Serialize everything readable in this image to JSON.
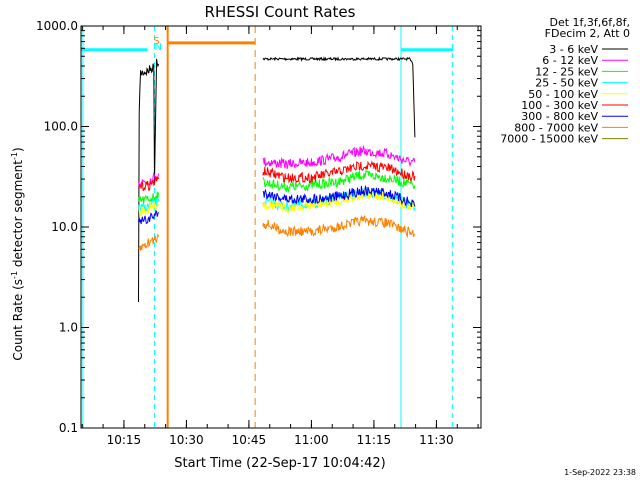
{
  "chart_data": {
    "type": "line",
    "title": "RHESSI Count Rates",
    "xlabel": "Start Time (22-Sep-17 10:04:42)",
    "ylabel_parts": [
      "Count Rate (s",
      "-1",
      " detector segment",
      "-1",
      ")"
    ],
    "yscale": "log",
    "ylim": [
      0.1,
      1000.0
    ],
    "y_ticks": [
      {
        "value": 0.1,
        "label": "0.1"
      },
      {
        "value": 1.0,
        "label": "1.0"
      },
      {
        "value": 10.0,
        "label": "10.0"
      },
      {
        "value": 100.0,
        "label": "100.0"
      },
      {
        "value": 1000.0,
        "label": "1000.0"
      }
    ],
    "xlim": [
      "10:04:42",
      "11:40:42"
    ],
    "x_ticks": [
      {
        "value": "10:15",
        "label": "10:15"
      },
      {
        "value": "10:30",
        "label": "10:30"
      },
      {
        "value": "10:45",
        "label": "10:45"
      },
      {
        "value": "11:00",
        "label": "11:00"
      },
      {
        "value": "11:15",
        "label": "11:15"
      },
      {
        "value": "11:30",
        "label": "11:30"
      }
    ],
    "legend_header": [
      "Det 1f,3f,6f,8f,",
      "FDecim 2, Att 0"
    ],
    "legend_position": "outside-right",
    "series": [
      {
        "name": "3 - 6 keV",
        "color": "#000000",
        "segments": [
          [
            [
              "10:18:30",
              1.6
            ],
            [
              "10:18:40",
              150
            ],
            [
              "10:19:00",
              340
            ],
            [
              "10:21:00",
              360
            ],
            [
              "10:21:30",
              380
            ],
            [
              "10:22:10",
              390
            ],
            [
              "10:22:20",
              30
            ],
            [
              "10:22:50",
              480
            ],
            [
              "10:23:20",
              420
            ]
          ],
          [
            [
              "10:48:20",
              470
            ],
            [
              "11:00:00",
              470
            ],
            [
              "11:15:00",
              470
            ],
            [
              "11:23:30",
              470
            ],
            [
              "11:24:20",
              420
            ],
            [
              "11:24:50",
              78
            ]
          ]
        ]
      },
      {
        "name": "6 - 12 keV",
        "color": "#ff00ff",
        "segments": [
          [
            [
              "10:18:30",
              28
            ],
            [
              "10:21:00",
              29
            ],
            [
              "10:22:10",
              31
            ],
            [
              "10:23:20",
              34
            ]
          ],
          [
            [
              "10:48:20",
              45
            ],
            [
              "10:54:00",
              42
            ],
            [
              "11:00:00",
              44
            ],
            [
              "11:06:00",
              49
            ],
            [
              "11:12:00",
              57
            ],
            [
              "11:18:00",
              54
            ],
            [
              "11:23:00",
              45
            ],
            [
              "11:24:50",
              44
            ]
          ]
        ]
      },
      {
        "name": "12 - 25 keV",
        "color": "#00ff00",
        "segments": [
          [
            [
              "10:18:30",
              18
            ],
            [
              "10:21:00",
              19
            ],
            [
              "10:22:10",
              20
            ],
            [
              "10:23:20",
              22
            ]
          ],
          [
            [
              "10:48:20",
              28
            ],
            [
              "10:54:00",
              25
            ],
            [
              "11:00:00",
              26
            ],
            [
              "11:06:00",
              28
            ],
            [
              "11:12:00",
              33
            ],
            [
              "11:18:00",
              31
            ],
            [
              "11:23:00",
              27
            ],
            [
              "11:24:50",
              26
            ]
          ]
        ]
      },
      {
        "name": "25 - 50 keV",
        "color": "#00ffff",
        "segments": [
          [
            [
              "10:18:30",
              15
            ],
            [
              "10:21:00",
              16
            ],
            [
              "10:22:10",
              17
            ],
            [
              "10:23:20",
              18
            ]
          ],
          [
            [
              "10:48:20",
              18
            ],
            [
              "10:54:00",
              16
            ],
            [
              "11:00:00",
              17
            ],
            [
              "11:06:00",
              19
            ],
            [
              "11:12:00",
              22
            ],
            [
              "11:18:00",
              21
            ],
            [
              "11:23:00",
              17
            ],
            [
              "11:24:50",
              16
            ]
          ]
        ]
      },
      {
        "name": "50 - 100 keV",
        "color": "#ffff00",
        "segments": [
          [
            [
              "10:18:30",
              14
            ],
            [
              "10:21:00",
              15
            ],
            [
              "10:22:10",
              16
            ],
            [
              "10:23:20",
              17
            ]
          ],
          [
            [
              "10:48:20",
              17
            ],
            [
              "10:54:00",
              15.5
            ],
            [
              "11:00:00",
              16.5
            ],
            [
              "11:06:00",
              18
            ],
            [
              "11:12:00",
              21
            ],
            [
              "11:18:00",
              20
            ],
            [
              "11:23:00",
              16.5
            ],
            [
              "11:24:50",
              15.5
            ]
          ]
        ]
      },
      {
        "name": "100 - 300 keV",
        "color": "#ff0000",
        "segments": [
          [
            [
              "10:18:30",
              25
            ],
            [
              "10:21:00",
              26
            ],
            [
              "10:22:10",
              28
            ],
            [
              "10:23:20",
              30
            ]
          ],
          [
            [
              "10:48:20",
              36
            ],
            [
              "10:54:00",
              31
            ],
            [
              "11:00:00",
              31
            ],
            [
              "11:06:00",
              35
            ],
            [
              "11:12:00",
              41
            ],
            [
              "11:18:00",
              39
            ],
            [
              "11:23:00",
              33
            ],
            [
              "11:24:50",
              32
            ]
          ]
        ]
      },
      {
        "name": "300 - 800 keV",
        "color": "#0000ff",
        "segments": [
          [
            [
              "10:18:30",
              11
            ],
            [
              "10:21:00",
              12
            ],
            [
              "10:22:10",
              13
            ],
            [
              "10:23:20",
              14
            ]
          ],
          [
            [
              "10:48:20",
              22
            ],
            [
              "10:54:00",
              19
            ],
            [
              "11:00:00",
              19
            ],
            [
              "11:06:00",
              20
            ],
            [
              "11:12:00",
              23
            ],
            [
              "11:18:00",
              22
            ],
            [
              "11:23:00",
              18
            ],
            [
              "11:24:50",
              16
            ]
          ]
        ]
      },
      {
        "name": "800 - 7000 keV",
        "color": "#ff8000",
        "segments": [
          [
            [
              "10:18:30",
              6
            ],
            [
              "10:21:00",
              7
            ],
            [
              "10:22:10",
              7.5
            ],
            [
              "10:23:20",
              8
            ]
          ],
          [
            [
              "10:48:20",
              11
            ],
            [
              "10:54:00",
              9
            ],
            [
              "11:00:00",
              9
            ],
            [
              "11:06:00",
              10
            ],
            [
              "11:12:00",
              11.5
            ],
            [
              "11:18:00",
              11
            ],
            [
              "11:23:00",
              9
            ],
            [
              "11:24:50",
              8.5
            ]
          ]
        ]
      },
      {
        "name": "7000 - 15000 keV",
        "color": "#808000",
        "segments": []
      }
    ],
    "annotations": [
      {
        "label": "S",
        "time": "10:22:50",
        "color": "#ff8000"
      },
      {
        "label": "N",
        "time": "10:23:15",
        "color": "#00ffff"
      }
    ],
    "timestamp": "1-Sep-2022 23:38"
  }
}
